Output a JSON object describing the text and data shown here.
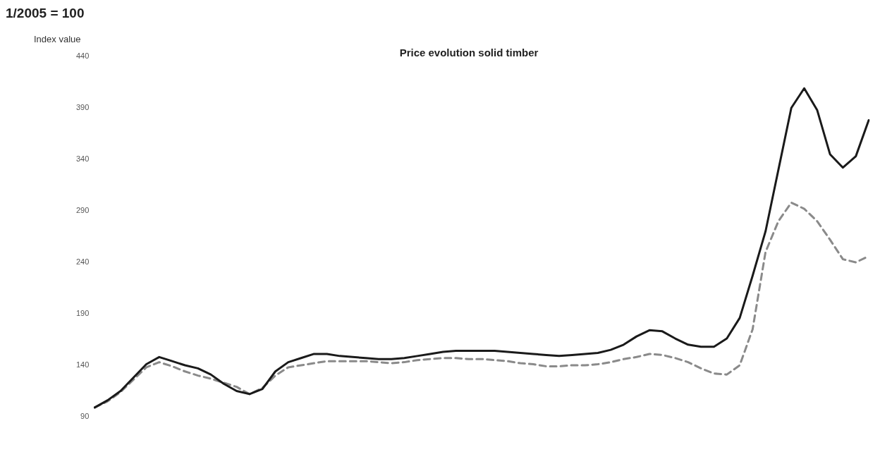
{
  "chart_data": {
    "type": "line",
    "title": "Price evolution solid timber",
    "subtitle": "1/2005 = 100",
    "ylabel": "Index value",
    "categories": [
      null,
      null,
      null,
      null,
      null,
      null,
      null,
      null,
      null,
      null,
      null,
      null,
      null,
      null,
      null,
      null,
      null,
      null,
      null,
      null,
      null,
      null,
      null,
      null,
      null,
      null,
      null,
      null,
      null,
      null,
      null,
      null,
      null,
      null,
      null,
      null,
      null,
      null,
      null,
      null,
      null,
      null,
      null,
      null,
      null,
      null,
      null,
      null,
      null,
      null,
      null,
      null,
      null,
      null,
      null,
      null,
      null,
      null,
      null,
      null,
      null
    ],
    "series": [
      {
        "color": "#1a1a1a",
        "line_style": "solid",
        "values": [
          99,
          106,
          115,
          128,
          141,
          148,
          144,
          140,
          137,
          131,
          122,
          115,
          112,
          117,
          134,
          143,
          147,
          151,
          151,
          149,
          148,
          147,
          146,
          146,
          147,
          149,
          151,
          153,
          154,
          154,
          154,
          154,
          153,
          152,
          151,
          150,
          149,
          150,
          151,
          152,
          155,
          160,
          168,
          174,
          173,
          166,
          160,
          158,
          158,
          166,
          186,
          227,
          270,
          330,
          390,
          409,
          388,
          345,
          332,
          343,
          378
        ]
      },
      {
        "color": "#8a8a8a",
        "line_style": "dashed",
        "values": [
          99,
          105,
          114,
          126,
          138,
          143,
          139,
          134,
          130,
          127,
          123,
          119,
          112,
          118,
          130,
          138,
          140,
          142,
          144,
          144,
          144,
          144,
          143,
          142,
          143,
          145,
          146,
          147,
          147,
          146,
          146,
          145,
          144,
          142,
          141,
          139,
          139,
          140,
          140,
          141,
          143,
          146,
          148,
          151,
          150,
          147,
          143,
          137,
          132,
          131,
          140,
          175,
          250,
          280,
          298,
          292,
          280,
          262,
          243,
          240,
          246
        ]
      }
    ],
    "ylim": [
      90,
      440
    ],
    "yticks": [
      90,
      140,
      190,
      240,
      290,
      340,
      390,
      440
    ],
    "grid": false,
    "legend": false,
    "marker": "none",
    "tick_labels": "y"
  }
}
